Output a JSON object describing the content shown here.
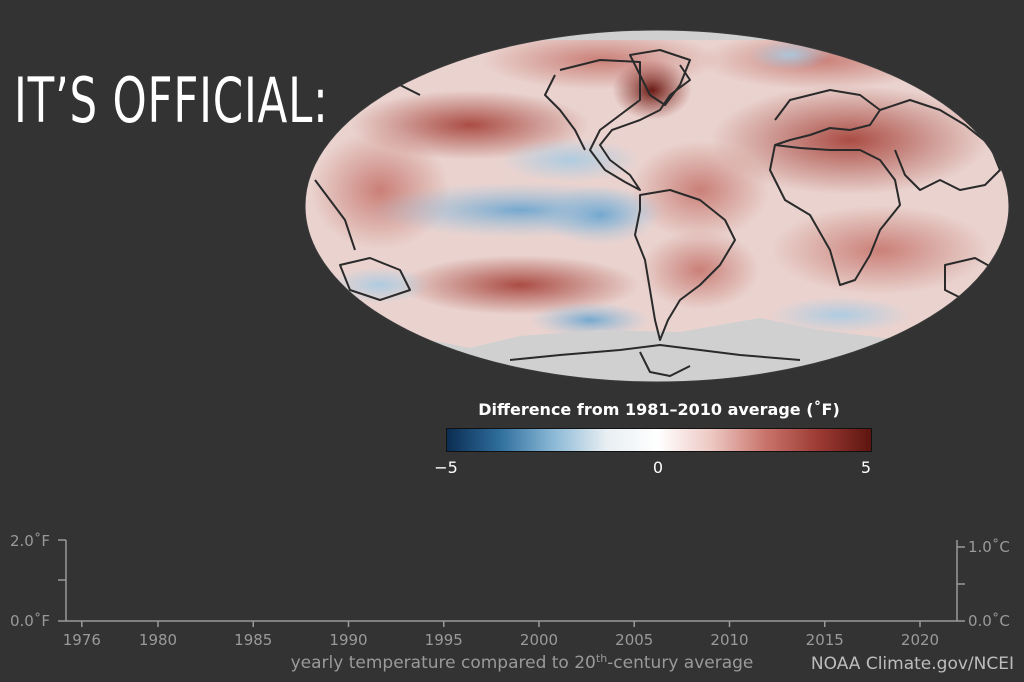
{
  "headline": "IT’S OFFICIAL:",
  "legend": {
    "title": "Difference from 1981–2010 average (˚F)",
    "min_label": "−5",
    "mid_label": "0",
    "max_label": "5",
    "colors": [
      "#0b2d52",
      "#2f6e9d",
      "#8ab8d6",
      "#e8eef2",
      "#ffffff",
      "#edc7c2",
      "#c9756c",
      "#9c3b33",
      "#5e1510"
    ]
  },
  "timeline": {
    "left_axis": {
      "top": "2.0˚F",
      "bottom": "0.0˚F"
    },
    "right_axis": {
      "top": "1.0˚C",
      "bottom": "0.0˚C"
    },
    "years": [
      "1976",
      "1980",
      "1985",
      "1990",
      "1995",
      "2000",
      "2005",
      "2010",
      "2015",
      "2020"
    ],
    "caption_pre": "yearly temperature compared to 20",
    "caption_sup": "th",
    "caption_post": "-century average"
  },
  "credit": "NOAA Climate.gov/NCEI"
}
